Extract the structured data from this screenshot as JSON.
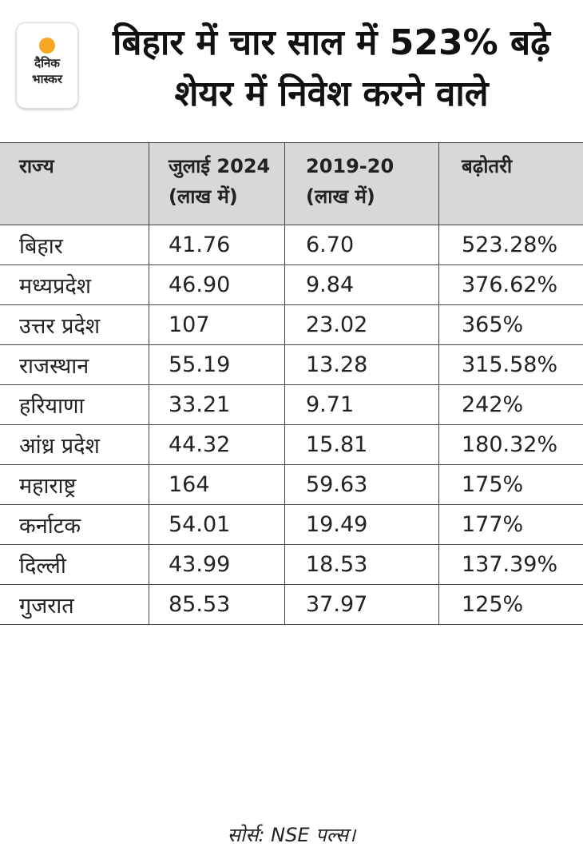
{
  "logo": {
    "line1": "दैनिक",
    "line2": "भास्कर"
  },
  "title": "बिहार में चार साल में 523% बढ़े शेयर में निवेश करने वाले",
  "table": {
    "headers": [
      {
        "line1": "राज्य",
        "line2": ""
      },
      {
        "line1": "जुलाई 2024",
        "line2": "(लाख में)"
      },
      {
        "line1": "2019-20",
        "line2": "(लाख में)"
      },
      {
        "line1": "बढ़ोतरी",
        "line2": ""
      }
    ],
    "rows": [
      [
        "बिहार",
        "41.76",
        "6.70",
        "523.28%"
      ],
      [
        "मध्यप्रदेश",
        "46.90",
        "9.84",
        "376.62%"
      ],
      [
        "उत्तर प्रदेश",
        "107",
        "23.02",
        "365%"
      ],
      [
        "राजस्थान",
        "55.19",
        "13.28",
        "315.58%"
      ],
      [
        "हरियाणा",
        "33.21",
        "9.71",
        "242%"
      ],
      [
        "आंध्र प्रदेश",
        "44.32",
        "15.81",
        "180.32%"
      ],
      [
        "महाराष्ट्र",
        "164",
        "59.63",
        "175%"
      ],
      [
        "कर्नाटक",
        "54.01",
        "19.49",
        "177%"
      ],
      [
        "दिल्ली",
        "43.99",
        "18.53",
        "137.39%"
      ],
      [
        "गुजरात",
        "85.53",
        "37.97",
        "125%"
      ]
    ]
  },
  "source": "सोर्स: NSE पल्स।"
}
